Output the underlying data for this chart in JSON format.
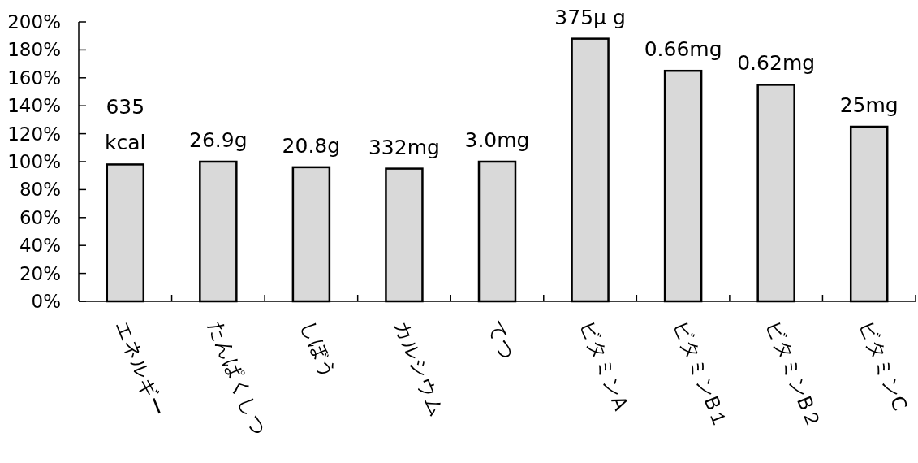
{
  "chart_data": {
    "type": "bar",
    "categories": [
      "エネルギー",
      "たんぱくしつ",
      "しぼう",
      "カルシウム",
      "てつ",
      "ビタミンA",
      "ビタミンB１",
      "ビタミンB２",
      "ビタミンC"
    ],
    "values": [
      98,
      100,
      96,
      95,
      100,
      188,
      165,
      155,
      125
    ],
    "annotations": [
      {
        "text": "635\nkcal",
        "x": "エネルギー",
        "y": 98
      },
      {
        "text": "26.9g",
        "x": "たんぱくしつ",
        "y": 100
      },
      {
        "text": "20.8g",
        "x": "しぼう",
        "y": 96
      },
      {
        "text": "332mg",
        "x": "カルシウム",
        "y": 95
      },
      {
        "text": "3.0mg",
        "x": "てつ",
        "y": 100
      },
      {
        "text": "375μ g",
        "x": "ビタミンA",
        "y": 188
      },
      {
        "text": "0.66mg",
        "x": "ビタミンB１",
        "y": 165
      },
      {
        "text": "0.62mg",
        "x": "ビタミンB２",
        "y": 155
      },
      {
        "text": "25mg",
        "x": "ビタミンC",
        "y": 125
      }
    ],
    "color": "#d9d9d9",
    "ylim": [
      0,
      200
    ],
    "yticks": [
      {
        "value": 0,
        "label": "0%"
      },
      {
        "value": 20,
        "label": "20%"
      },
      {
        "value": 40,
        "label": "40%"
      },
      {
        "value": 60,
        "label": "60%"
      },
      {
        "value": 80,
        "label": "80%"
      },
      {
        "value": 100,
        "label": "100%"
      },
      {
        "value": 120,
        "label": "120%"
      },
      {
        "value": 140,
        "label": "140%"
      },
      {
        "value": 160,
        "label": "160%"
      },
      {
        "value": 180,
        "label": "180%"
      },
      {
        "value": 200,
        "label": "200%"
      }
    ],
    "grid": false
  }
}
